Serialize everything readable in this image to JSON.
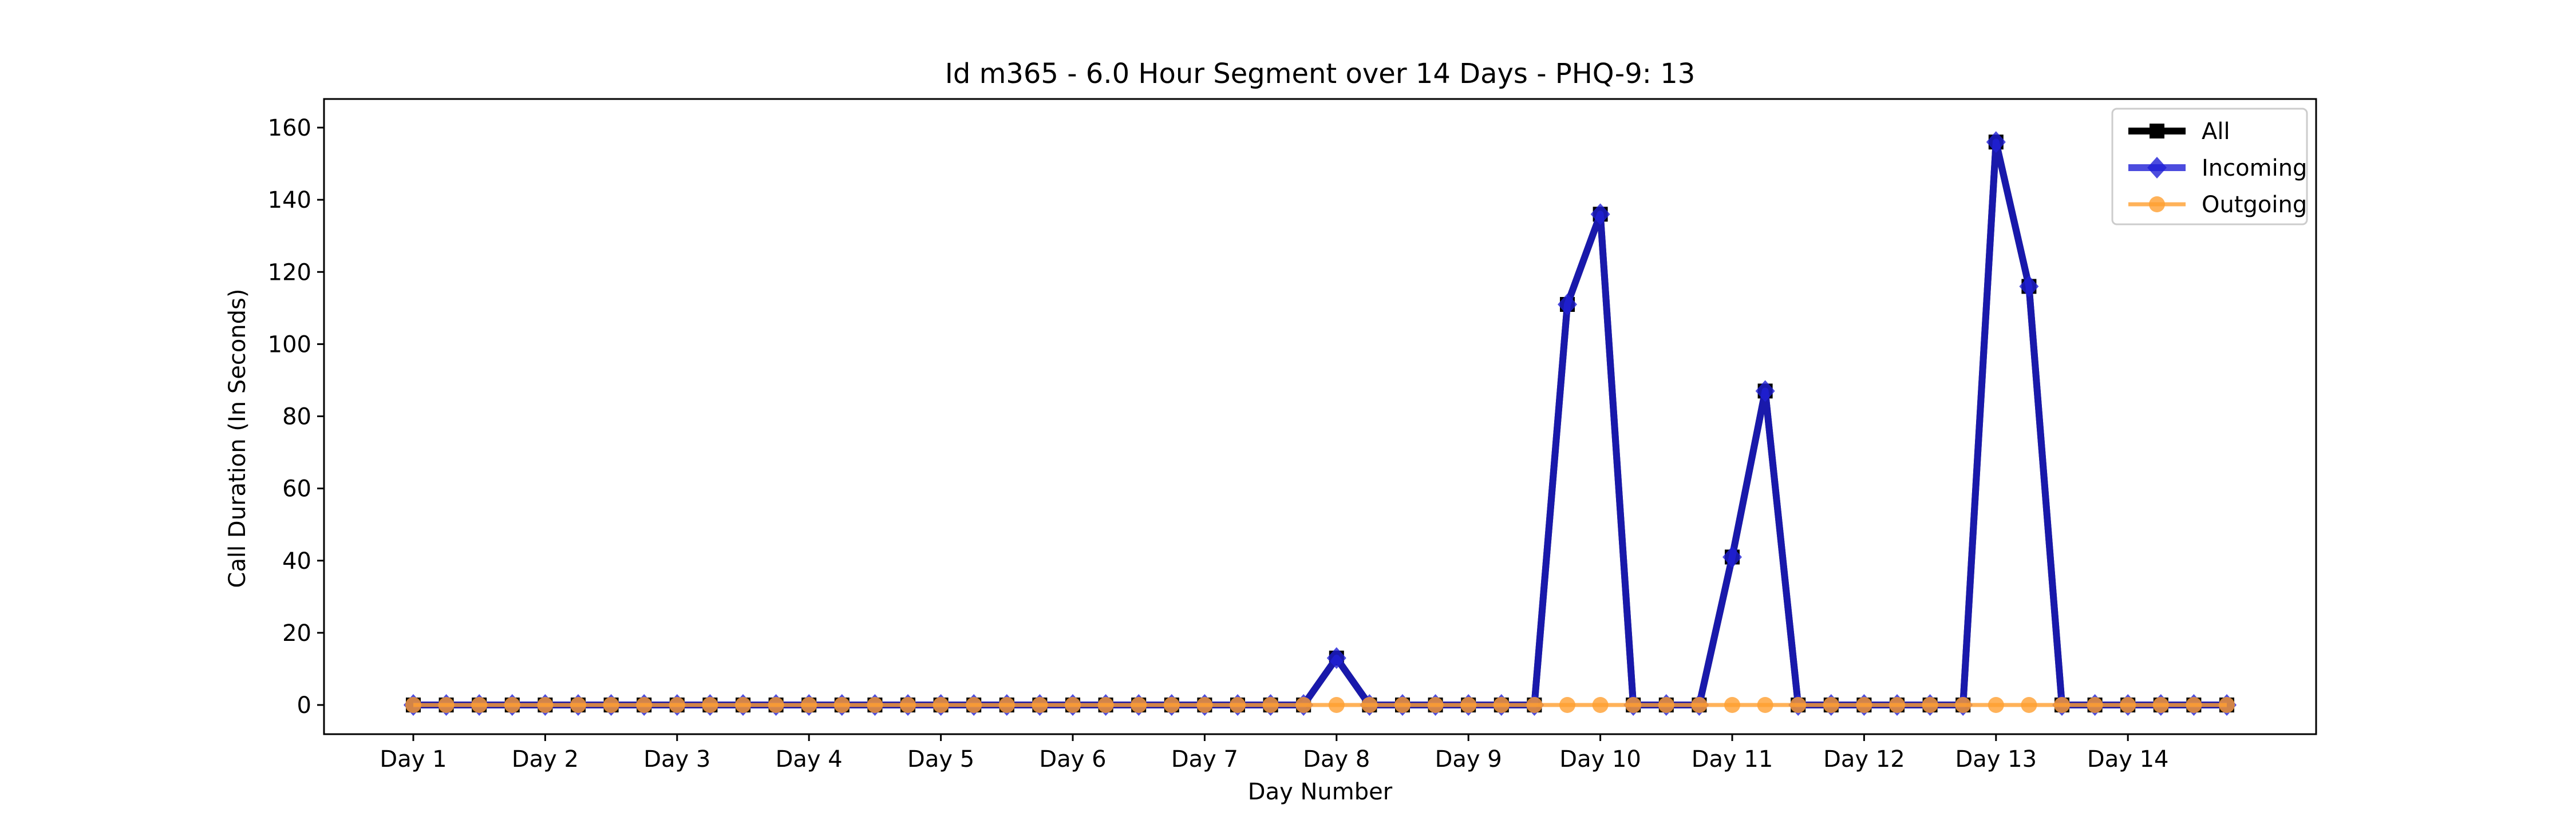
{
  "chart_data": {
    "type": "line",
    "title": "Id m365 - 6.0 Hour Segment over 14 Days - PHQ-9: 13",
    "xlabel": "Day Number",
    "ylabel": "Call Duration (In Seconds)",
    "ylim": [
      0,
      160
    ],
    "yticks": [
      0,
      20,
      40,
      60,
      80,
      100,
      120,
      140,
      160
    ],
    "xtick_labels": [
      "Day 1",
      "Day 2",
      "Day 3",
      "Day 4",
      "Day 5",
      "Day 6",
      "Day 7",
      "Day 8",
      "Day 9",
      "Day 10",
      "Day 11",
      "Day 12",
      "Day 13",
      "Day 14"
    ],
    "segments_per_day": 4,
    "grid": false,
    "legend_position": "top-right",
    "series": [
      {
        "name": "All",
        "color": "#000000",
        "marker": "square",
        "values": [
          0,
          0,
          0,
          0,
          0,
          0,
          0,
          0,
          0,
          0,
          0,
          0,
          0,
          0,
          0,
          0,
          0,
          0,
          0,
          0,
          0,
          0,
          0,
          0,
          0,
          0,
          0,
          0,
          13,
          0,
          0,
          0,
          0,
          0,
          0,
          111,
          136,
          0,
          0,
          0,
          41,
          87,
          0,
          0,
          0,
          0,
          0,
          0,
          156,
          116,
          0,
          0,
          0,
          0,
          0,
          0
        ]
      },
      {
        "name": "Incoming",
        "color": "#1f1fd6",
        "marker": "diamond",
        "values": [
          0,
          0,
          0,
          0,
          0,
          0,
          0,
          0,
          0,
          0,
          0,
          0,
          0,
          0,
          0,
          0,
          0,
          0,
          0,
          0,
          0,
          0,
          0,
          0,
          0,
          0,
          0,
          0,
          13,
          0,
          0,
          0,
          0,
          0,
          0,
          111,
          136,
          0,
          0,
          0,
          41,
          87,
          0,
          0,
          0,
          0,
          0,
          0,
          156,
          116,
          0,
          0,
          0,
          0,
          0,
          0
        ]
      },
      {
        "name": "Outgoing",
        "color": "#ff9f2f",
        "marker": "circle",
        "values": [
          0,
          0,
          0,
          0,
          0,
          0,
          0,
          0,
          0,
          0,
          0,
          0,
          0,
          0,
          0,
          0,
          0,
          0,
          0,
          0,
          0,
          0,
          0,
          0,
          0,
          0,
          0,
          0,
          0,
          0,
          0,
          0,
          0,
          0,
          0,
          0,
          0,
          0,
          0,
          0,
          0,
          0,
          0,
          0,
          0,
          0,
          0,
          0,
          0,
          0,
          0,
          0,
          0,
          0,
          0,
          0
        ]
      }
    ]
  }
}
